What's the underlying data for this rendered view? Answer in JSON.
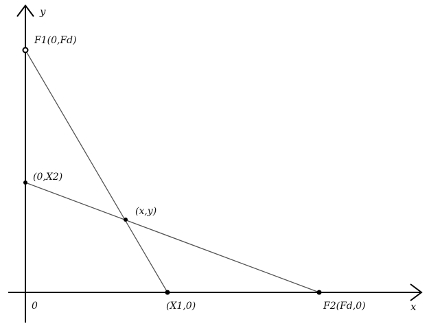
{
  "axes": {
    "x_label": "x",
    "y_label": "y",
    "origin_label": "0"
  },
  "points": {
    "f1": "F1(0,Fd)",
    "x2": "(0,X2)",
    "intersection": "(x,y)",
    "x1": "(X1,0)",
    "f2": "F2(Fd,0)"
  },
  "colors": {
    "axis": "#000000",
    "line": "#555555",
    "point": "#000000"
  }
}
